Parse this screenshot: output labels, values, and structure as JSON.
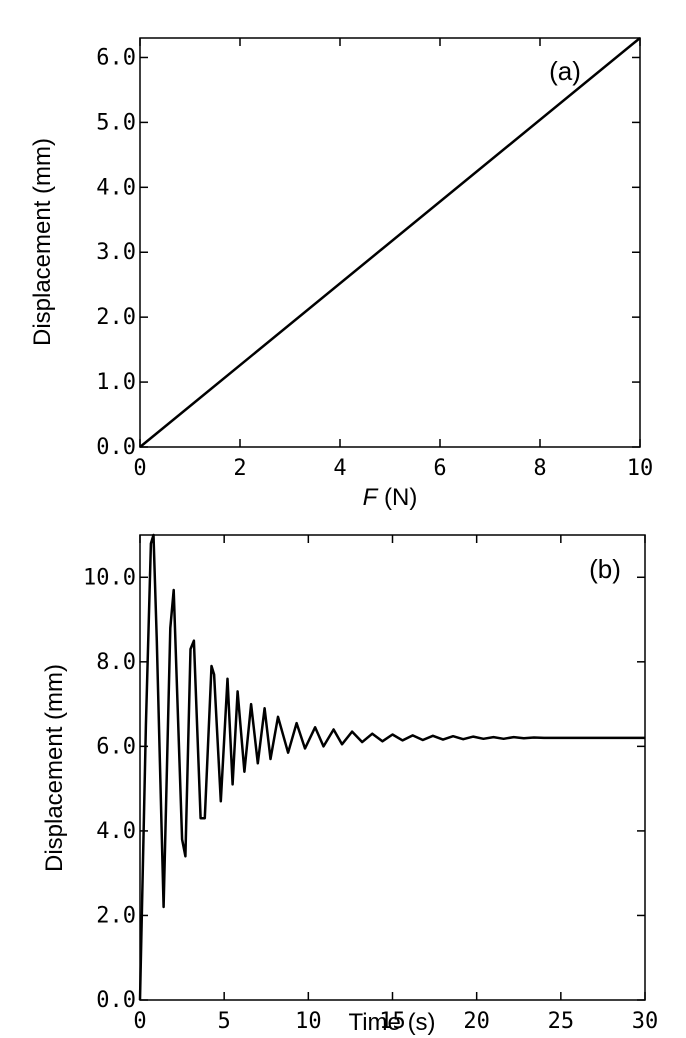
{
  "chart_data": [
    {
      "type": "line",
      "panel_label": "(a)",
      "xlabel_var": "F",
      "xlabel_unit": " (N)",
      "ylabel": "Displacement (mm)",
      "xlim": [
        0,
        10
      ],
      "ylim": [
        0,
        6.3
      ],
      "xticks": [
        0,
        2,
        4,
        6,
        8,
        10
      ],
      "xtick_labels": [
        "0",
        "2",
        "4",
        "6",
        "8",
        "10"
      ],
      "yticks": [
        0,
        1,
        2,
        3,
        4,
        5,
        6
      ],
      "ytick_labels": [
        "0.0",
        "1.0",
        "2.0",
        "3.0",
        "4.0",
        "5.0",
        "6.0"
      ],
      "grid": false,
      "series": [
        {
          "x": [
            0,
            10
          ],
          "y": [
            0,
            6.3
          ]
        }
      ]
    },
    {
      "type": "line",
      "panel_label": "(b)",
      "xlabel": "Time (s)",
      "ylabel": "Displacement (mm)",
      "xlim": [
        0,
        30
      ],
      "ylim": [
        0,
        11
      ],
      "xticks": [
        0,
        5,
        10,
        15,
        20,
        25,
        30
      ],
      "xtick_labels": [
        "0",
        "5",
        "10",
        "15",
        "20",
        "25",
        "30"
      ],
      "yticks": [
        0,
        2,
        4,
        6,
        8,
        10
      ],
      "ytick_labels": [
        "0.0",
        "2.0",
        "4.0",
        "6.0",
        "8.0",
        "10.0"
      ],
      "grid": false,
      "series": [
        {
          "x": [
            0,
            0.35,
            0.65,
            0.8,
            1.0,
            1.4,
            1.8,
            2.0,
            2.5,
            2.7,
            3.0,
            3.2,
            3.6,
            3.85,
            4.25,
            4.4,
            4.8,
            5.2,
            5.5,
            5.8,
            6.2,
            6.6,
            7.0,
            7.4,
            7.75,
            8.2,
            8.8,
            9.3,
            9.8,
            10.4,
            10.9,
            11.5,
            12.0,
            12.6,
            13.2,
            13.8,
            14.4,
            15.0,
            15.6,
            16.2,
            16.8,
            17.4,
            18.0,
            18.6,
            19.2,
            19.8,
            20.4,
            21.0,
            21.6,
            22.2,
            22.8,
            23.4,
            24.0,
            25.0,
            26.0,
            27.0,
            28.0,
            29.0,
            30.0
          ],
          "y": [
            0,
            6.5,
            10.8,
            11.0,
            8.5,
            2.2,
            8.8,
            9.7,
            3.8,
            3.4,
            8.3,
            8.5,
            4.3,
            4.3,
            7.9,
            7.7,
            4.7,
            7.6,
            5.1,
            7.3,
            5.4,
            7.0,
            5.6,
            6.9,
            5.7,
            6.7,
            5.85,
            6.55,
            5.95,
            6.45,
            6.0,
            6.4,
            6.05,
            6.35,
            6.1,
            6.3,
            6.12,
            6.28,
            6.14,
            6.26,
            6.15,
            6.25,
            6.16,
            6.24,
            6.17,
            6.23,
            6.18,
            6.22,
            6.18,
            6.22,
            6.19,
            6.21,
            6.2,
            6.2,
            6.2,
            6.2,
            6.2,
            6.2,
            6.2
          ]
        }
      ]
    }
  ]
}
